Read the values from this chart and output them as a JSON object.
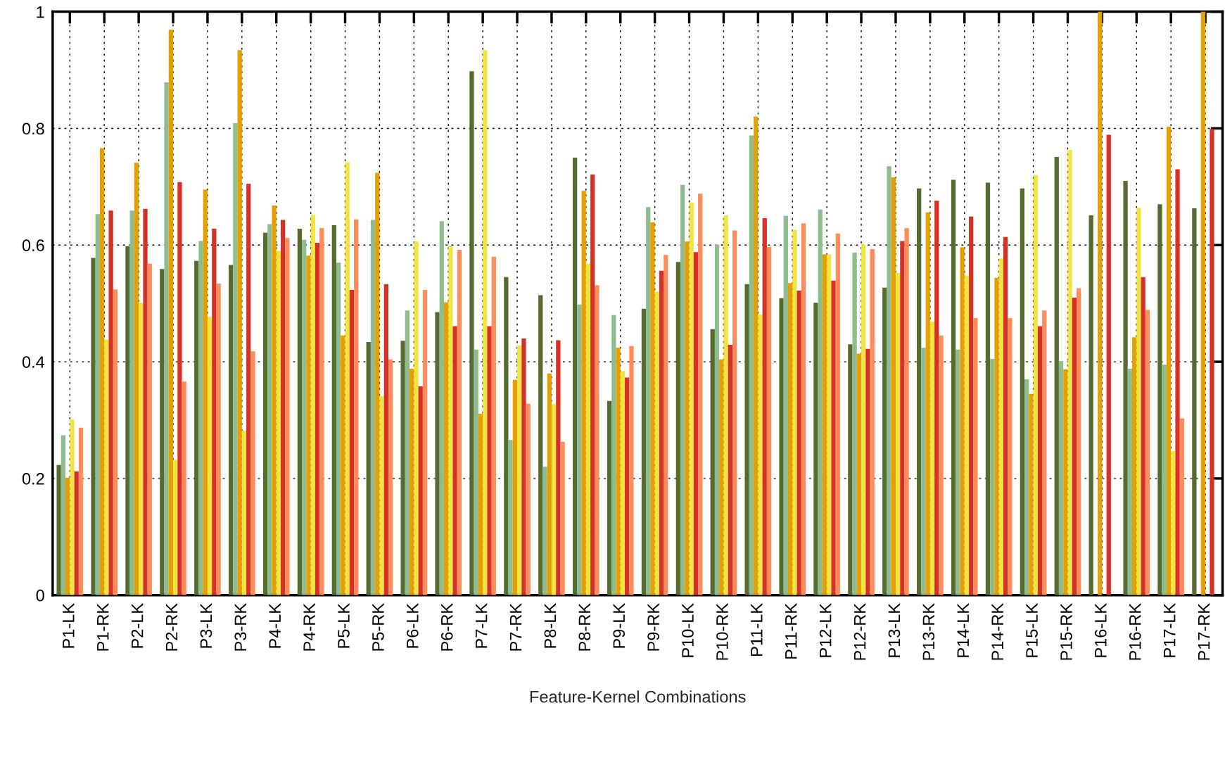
{
  "chart_data": {
    "type": "bar",
    "xlabel": "Feature-Kernel Combinations",
    "categories": [
      "P1-LK",
      "P1-RK",
      "P2-LK",
      "P2-RK",
      "P3-LK",
      "P3-RK",
      "P4-LK",
      "P4-RK",
      "P5-LK",
      "P5-RK",
      "P6-LK",
      "P6-RK",
      "P7-LK",
      "P7-RK",
      "P8-LK",
      "P8-RK",
      "P9-LK",
      "P9-RK",
      "P10-LK",
      "P10-RK",
      "P11-LK",
      "P11-RK",
      "P12-LK",
      "P12-RK",
      "P13-LK",
      "P13-RK",
      "P14-LK",
      "P14-RK",
      "P15-LK",
      "P15-RK",
      "P16-LK",
      "P16-RK",
      "P17-LK",
      "P17-RK"
    ],
    "series": [
      {
        "color": "#556b2f",
        "values": [
          0.223,
          0.578,
          0.598,
          0.559,
          0.573,
          0.566,
          0.621,
          0.628,
          0.634,
          0.434,
          0.436,
          0.485,
          0.898,
          0.545,
          0.514,
          0.75,
          0.333,
          0.491,
          0.571,
          0.456,
          0.533,
          0.509,
          0.501,
          0.43,
          0.527,
          0.697,
          0.712,
          0.707,
          0.697,
          0.751,
          0.651,
          0.71,
          0.67,
          0.663
        ]
      },
      {
        "color": "#8fbc8f",
        "values": [
          0.274,
          0.653,
          0.659,
          0.879,
          0.607,
          0.809,
          0.636,
          0.609,
          0.57,
          0.643,
          0.488,
          0.641,
          0.421,
          0.266,
          0.22,
          0.498,
          0.48,
          0.665,
          0.703,
          0.601,
          0.788,
          0.65,
          0.661,
          0.587,
          0.735,
          0.424,
          0.421,
          0.405,
          0.37,
          0.401,
          null,
          0.388,
          0.395,
          null
        ]
      },
      {
        "color": "#e69f00",
        "values": [
          0.201,
          0.766,
          0.741,
          0.969,
          0.695,
          0.934,
          0.668,
          0.582,
          0.445,
          0.724,
          0.388,
          0.502,
          0.311,
          0.369,
          0.38,
          0.693,
          0.424,
          0.639,
          0.606,
          0.404,
          0.82,
          0.535,
          0.584,
          0.414,
          0.716,
          0.656,
          0.596,
          0.544,
          0.345,
          0.387,
          1.0,
          0.442,
          0.803,
          1.0
        ]
      },
      {
        "color": "#f0e442",
        "values": [
          0.301,
          0.438,
          0.501,
          0.232,
          0.477,
          0.282,
          0.59,
          0.652,
          0.742,
          0.341,
          0.606,
          0.598,
          0.934,
          0.428,
          0.327,
          0.568,
          0.384,
          0.52,
          0.673,
          0.651,
          0.481,
          0.626,
          0.584,
          0.601,
          0.552,
          0.469,
          0.548,
          0.577,
          0.72,
          0.763,
          null,
          0.664,
          0.247,
          null
        ]
      },
      {
        "color": "#d73027",
        "values": [
          0.212,
          0.659,
          0.662,
          0.708,
          0.628,
          0.705,
          0.643,
          0.604,
          0.523,
          0.533,
          0.358,
          0.461,
          0.461,
          0.44,
          0.437,
          0.721,
          0.373,
          0.556,
          0.588,
          0.429,
          0.646,
          0.522,
          0.539,
          0.422,
          0.607,
          0.676,
          0.649,
          0.614,
          0.461,
          0.51,
          0.789,
          0.545,
          0.73,
          0.799
        ]
      },
      {
        "color": "#ff8c5a",
        "values": [
          0.287,
          0.524,
          0.568,
          0.366,
          0.534,
          0.418,
          0.612,
          0.629,
          0.644,
          0.404,
          0.523,
          0.592,
          0.58,
          0.328,
          0.263,
          0.531,
          0.427,
          0.583,
          0.688,
          0.625,
          0.597,
          0.637,
          0.62,
          0.593,
          0.629,
          0.445,
          0.475,
          0.475,
          0.488,
          0.526,
          null,
          0.489,
          0.303,
          null
        ]
      }
    ],
    "ylim": [
      0,
      1
    ],
    "yticks": [
      0,
      0.2,
      0.4,
      0.6,
      0.8,
      1
    ],
    "grid": true
  }
}
